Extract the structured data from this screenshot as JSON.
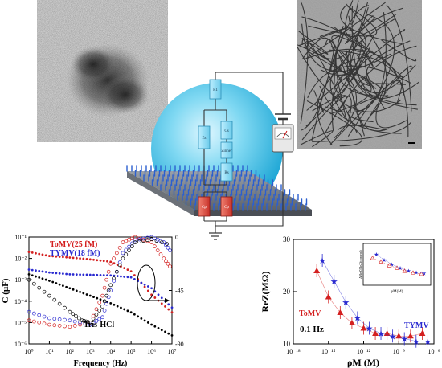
{
  "circuit": {
    "labels": [
      "R1",
      "Cs",
      "Zs",
      "Zinner",
      "Zouter",
      "Rs",
      "Cp",
      "Cp"
    ]
  },
  "left_chart": {
    "chart_data": {
      "type": "scatter",
      "title": "",
      "xlabel": "Frequency (Hz)",
      "ylabel": "C (μF)",
      "xscale": "log",
      "yscale": "log",
      "xlim": [
        1,
        10000000
      ],
      "ylim": [
        1e-06,
        0.1
      ],
      "right_axis": {
        "ticks": [
          "0",
          "-45",
          "-90"
        ]
      },
      "x_ticks": [
        "10⁰",
        "10¹",
        "10²",
        "10³",
        "10⁴",
        "10⁵",
        "10⁶",
        "10⁷"
      ],
      "y_ticks": [
        "10⁻¹",
        "10⁻²",
        "10⁻³",
        "10⁻⁴",
        "10⁻⁵",
        "10⁻⁶"
      ],
      "series": [
        {
          "name": "ToMV(25 fM)",
          "color": "#d42020",
          "x": [
            1,
            10,
            100,
            1000,
            10000,
            100000,
            1000000,
            10000000
          ],
          "y": [
            0.02,
            0.013,
            0.011,
            0.009,
            0.007,
            0.0025,
            0.0002,
            3e-05
          ]
        },
        {
          "name": "TYMV(18 fM)",
          "color": "#2a2ad0",
          "x": [
            1,
            10,
            100,
            1000,
            10000,
            100000,
            1000000,
            10000000
          ],
          "y": [
            0.003,
            0.0022,
            0.0018,
            0.0017,
            0.0016,
            0.0013,
            0.0004,
            5e-05
          ]
        },
        {
          "name": "Tris-HCl",
          "color": "#000000",
          "x": [
            1,
            10,
            100,
            1000,
            10000,
            100000,
            1000000,
            10000000
          ],
          "y": [
            0.0018,
            0.0009,
            0.0004,
            0.00018,
            8e-05,
            3e-05,
            8e-06,
            2.5e-06
          ]
        }
      ]
    }
  },
  "right_chart": {
    "chart_data": {
      "type": "scatter",
      "title": "",
      "xlabel": "ρM (M)",
      "ylabel": "ReZ(MΩ)",
      "xscale": "log",
      "xlim": [
        1e-18,
        1e-06
      ],
      "ylim": [
        10,
        30
      ],
      "annotation": "0.1 Hz",
      "x_ticks": [
        "10⁻¹⁸",
        "10⁻¹⁵",
        "10⁻¹²",
        "10⁻⁹",
        "10⁻⁶"
      ],
      "y_ticks": [
        "30",
        "20",
        "10"
      ],
      "series": [
        {
          "name": "ToMV",
          "color": "#d42020",
          "x": [
            1e-16,
            1e-15,
            1e-14,
            1e-13,
            1e-12,
            1e-11,
            1e-10,
            1e-09,
            1e-08,
            1e-07
          ],
          "y": [
            24,
            19,
            16,
            14,
            13,
            12,
            12,
            11.5,
            11.5,
            12
          ]
        },
        {
          "name": "TYMV",
          "color": "#2a2ad0",
          "x": [
            3e-16,
            3e-15,
            3e-14,
            3e-13,
            3e-12,
            3e-11,
            3e-10,
            3e-09,
            3e-08,
            3e-07
          ],
          "y": [
            26,
            22,
            18,
            15,
            13,
            12,
            11.5,
            11,
            10.5,
            10.5
          ]
        }
      ],
      "inset": {
        "xlabel": "ρM(M)",
        "ylabel": "ΔReZ/ReZ(control)"
      }
    }
  }
}
